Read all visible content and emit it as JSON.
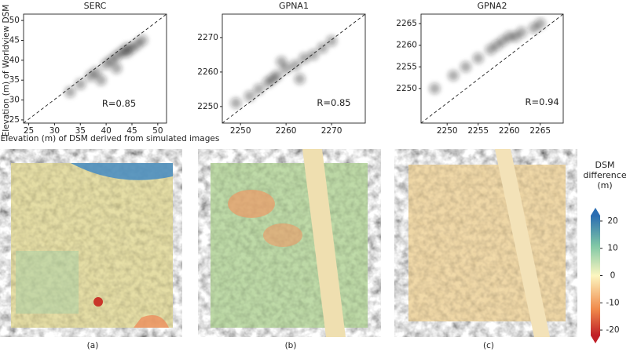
{
  "chart_data": [
    {
      "type": "scatter",
      "title": "SERC",
      "color": "#1a1a1a",
      "x": [
        33,
        35,
        37,
        38,
        40,
        41,
        42,
        43,
        44,
        44,
        45,
        46,
        47,
        39,
        42
      ],
      "values": [
        32,
        34,
        36,
        37,
        39,
        40,
        41,
        42,
        43,
        42,
        43,
        44,
        45,
        35,
        38
      ],
      "xlim": [
        24,
        51.7
      ],
      "ylim": [
        24.2,
        51.6
      ],
      "xticks": [
        25,
        30,
        35,
        40,
        45,
        50
      ],
      "yticks": [
        25,
        30,
        35,
        40,
        45,
        50
      ],
      "annotation": {
        "text": "R=0.85",
        "x": 42.5,
        "y": 29
      }
    },
    {
      "type": "scatter",
      "title": "GPNA1",
      "color": "#1a1a1a",
      "x": [
        2249,
        2252,
        2254,
        2256,
        2257,
        2258,
        2260,
        2262,
        2264,
        2266,
        2268,
        2270,
        2259,
        2263
      ],
      "values": [
        2251,
        2253,
        2255,
        2257,
        2258,
        2259,
        2261,
        2262,
        2264,
        2265,
        2267,
        2269,
        2263,
        2258
      ],
      "xlim": [
        2246,
        2277.4
      ],
      "ylim": [
        2245.2,
        2276.8
      ],
      "xticks": [
        2250,
        2260,
        2270
      ],
      "yticks": [
        2250,
        2260,
        2270
      ],
      "annotation": {
        "text": "R=0.85",
        "x": 2270.5,
        "y": 2251
      }
    },
    {
      "type": "scatter",
      "title": "GPNA2",
      "color": "#1a1a1a",
      "x": [
        2248,
        2251,
        2253,
        2255,
        2257,
        2258,
        2259,
        2260,
        2261,
        2262,
        2264,
        2265
      ],
      "values": [
        2250,
        2253,
        2255,
        2257,
        2259,
        2260,
        2261,
        2262,
        2262,
        2263,
        2264,
        2265
      ],
      "xlim": [
        2245.8,
        2268.7
      ],
      "ylim": [
        2242,
        2267.2
      ],
      "xticks": [
        2250,
        2255,
        2260,
        2265
      ],
      "yticks": [
        2250,
        2255,
        2260,
        2265
      ],
      "annotation": {
        "text": "R=0.94",
        "x": 2265.3,
        "y": 2246.8
      }
    },
    {
      "type": "colorbar",
      "title": "DSM difference (m)",
      "ylim": [
        -22,
        22
      ],
      "yticks": [
        20,
        10,
        0,
        -10,
        -20
      ]
    }
  ],
  "figure": {
    "xlabel": "Elevation (m) of DSM derived from simulated images",
    "ylabel": "Elevation (m) of  Worldview DSM",
    "panels": [
      "(a)",
      "(b)",
      "(c)"
    ]
  }
}
